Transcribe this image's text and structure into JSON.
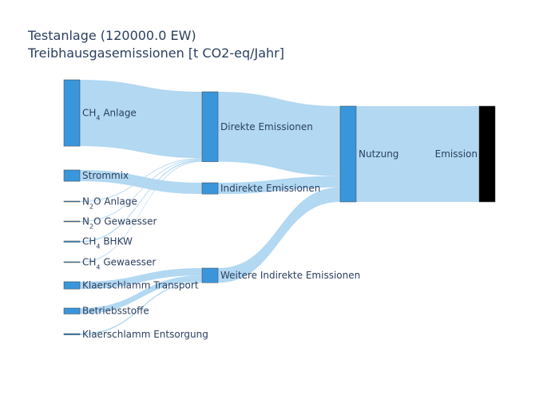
{
  "chart_data": {
    "type": "sankey",
    "title_line1": "Testanlage (120000.0 EW)",
    "title_line2": "Treibhausgasemissionen [t CO2-eq/Jahr]",
    "nodes": [
      {
        "id": "ch4_anlage",
        "label": "CH4 Anlage",
        "label_base": "CH",
        "label_sub": "4",
        "label_rest": " Anlage",
        "color": "#3a96db"
      },
      {
        "id": "strommix",
        "label": "Strommix",
        "color": "#3a96db"
      },
      {
        "id": "n2o_anlage",
        "label": "N2O Anlage",
        "label_base": "N",
        "label_sub": "2",
        "label_rest": "O Anlage",
        "color": "#3a96db"
      },
      {
        "id": "n2o_gewaesser",
        "label": "N2O Gewaesser",
        "label_base": "N",
        "label_sub": "2",
        "label_rest": "O Gewaesser",
        "color": "#3a96db"
      },
      {
        "id": "ch4_bhkw",
        "label": "CH4 BHKW",
        "label_base": "CH",
        "label_sub": "4",
        "label_rest": " BHKW",
        "color": "#3a96db"
      },
      {
        "id": "ch4_gewaesser",
        "label": "CH4 Gewaesser",
        "label_base": "CH",
        "label_sub": "4",
        "label_rest": " Gewaesser",
        "color": "#3a96db"
      },
      {
        "id": "klaerschlamm_transport",
        "label": "Klaerschlamm Transport",
        "color": "#3a96db"
      },
      {
        "id": "betriebsstoffe",
        "label": "Betriebsstoffe",
        "color": "#3a96db"
      },
      {
        "id": "klaerschlamm_entsorgung",
        "label": "Klaerschlamm Entsorgung",
        "color": "#3a96db"
      },
      {
        "id": "direkte",
        "label": "Direkte Emissionen",
        "color": "#3a96db"
      },
      {
        "id": "indirekte",
        "label": "Indirekte Emissionen",
        "color": "#3a96db"
      },
      {
        "id": "weitere",
        "label": "Weitere Indirekte Emissionen",
        "color": "#3a96db"
      },
      {
        "id": "nutzung",
        "label": "Nutzung",
        "color": "#3a96db"
      },
      {
        "id": "emission",
        "label": "Emission",
        "color": "#000000"
      }
    ],
    "links": [
      {
        "source": "ch4_anlage",
        "target": "direkte",
        "value": 1000
      },
      {
        "source": "n2o_anlage",
        "target": "direkte",
        "value": 12
      },
      {
        "source": "n2o_gewaesser",
        "target": "direkte",
        "value": 12
      },
      {
        "source": "ch4_bhkw",
        "target": "direkte",
        "value": 18
      },
      {
        "source": "ch4_gewaesser",
        "target": "direkte",
        "value": 12
      },
      {
        "source": "strommix",
        "target": "indirekte",
        "value": 170
      },
      {
        "source": "klaerschlamm_transport",
        "target": "weitere",
        "value": 110
      },
      {
        "source": "betriebsstoffe",
        "target": "weitere",
        "value": 90
      },
      {
        "source": "klaerschlamm_entsorgung",
        "target": "weitere",
        "value": 20
      },
      {
        "source": "direkte",
        "target": "nutzung",
        "value": 1054
      },
      {
        "source": "indirekte",
        "target": "nutzung",
        "value": 170
      },
      {
        "source": "weitere",
        "target": "nutzung",
        "value": 220
      },
      {
        "source": "nutzung",
        "target": "emission",
        "value": 1444
      }
    ]
  }
}
